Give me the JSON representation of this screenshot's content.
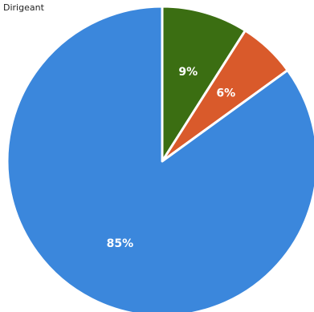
{
  "chart_data": {
    "type": "pie",
    "legend_label": "Dirigeant",
    "slices": [
      {
        "label": "9%",
        "value": 9,
        "color": "#3b6e12"
      },
      {
        "label": "6%",
        "value": 6,
        "color": "#d95a2b"
      },
      {
        "label": "85%",
        "value": 85,
        "color": "#3b87dc"
      }
    ],
    "start": "top",
    "direction": "clockwise"
  }
}
